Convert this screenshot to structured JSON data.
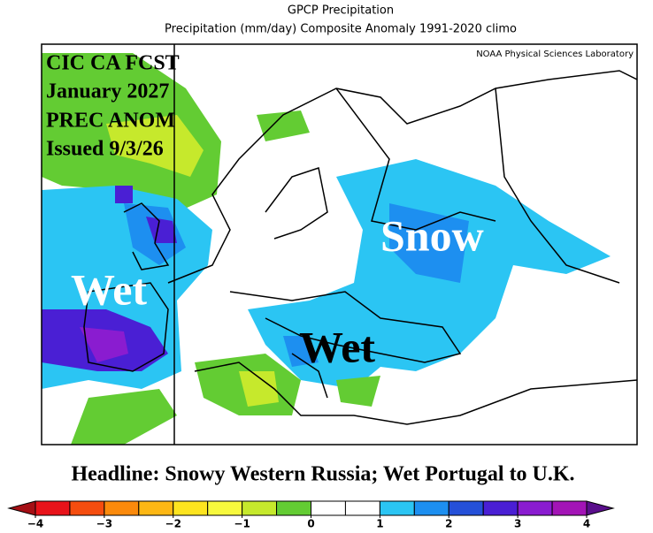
{
  "header": {
    "title": "GPCP Precipitation",
    "subtitle": "Precipitation (mm/day) Composite Anomaly 1991-2020 climo",
    "credit": "NOAA Physical Sciences Laboratory"
  },
  "overlay": {
    "lines": [
      "CIC CA FCST",
      "January 2027",
      "PREC ANOM",
      "Issued 9/3/26"
    ],
    "labels": [
      "Snow",
      "Wet",
      "Wet"
    ]
  },
  "headline": "Headline: Snowy Western Russia; Wet Portugal to U.K.",
  "colorbar": {
    "range": [
      -4,
      4
    ],
    "ticks": [
      {
        "value": -4,
        "label": "−4"
      },
      {
        "value": -3,
        "label": "−3"
      },
      {
        "value": -2,
        "label": "−2"
      },
      {
        "value": -1,
        "label": "−1"
      },
      0,
      1,
      2,
      3,
      4
    ],
    "colors": [
      "#e8131a",
      "#f54d0f",
      "#fb8a0c",
      "#fdb714",
      "#fde41f",
      "#f7f93d",
      "#c6e92c",
      "#63cc33",
      "#ffffff",
      "#ffffff",
      "#2bc5f3",
      "#1d8ff0",
      "#2550d8",
      "#4a1fd4",
      "#8a1cd0",
      "#a314b6"
    ],
    "low_color": "#a50f15",
    "high_color": "#5a0f8c"
  }
}
